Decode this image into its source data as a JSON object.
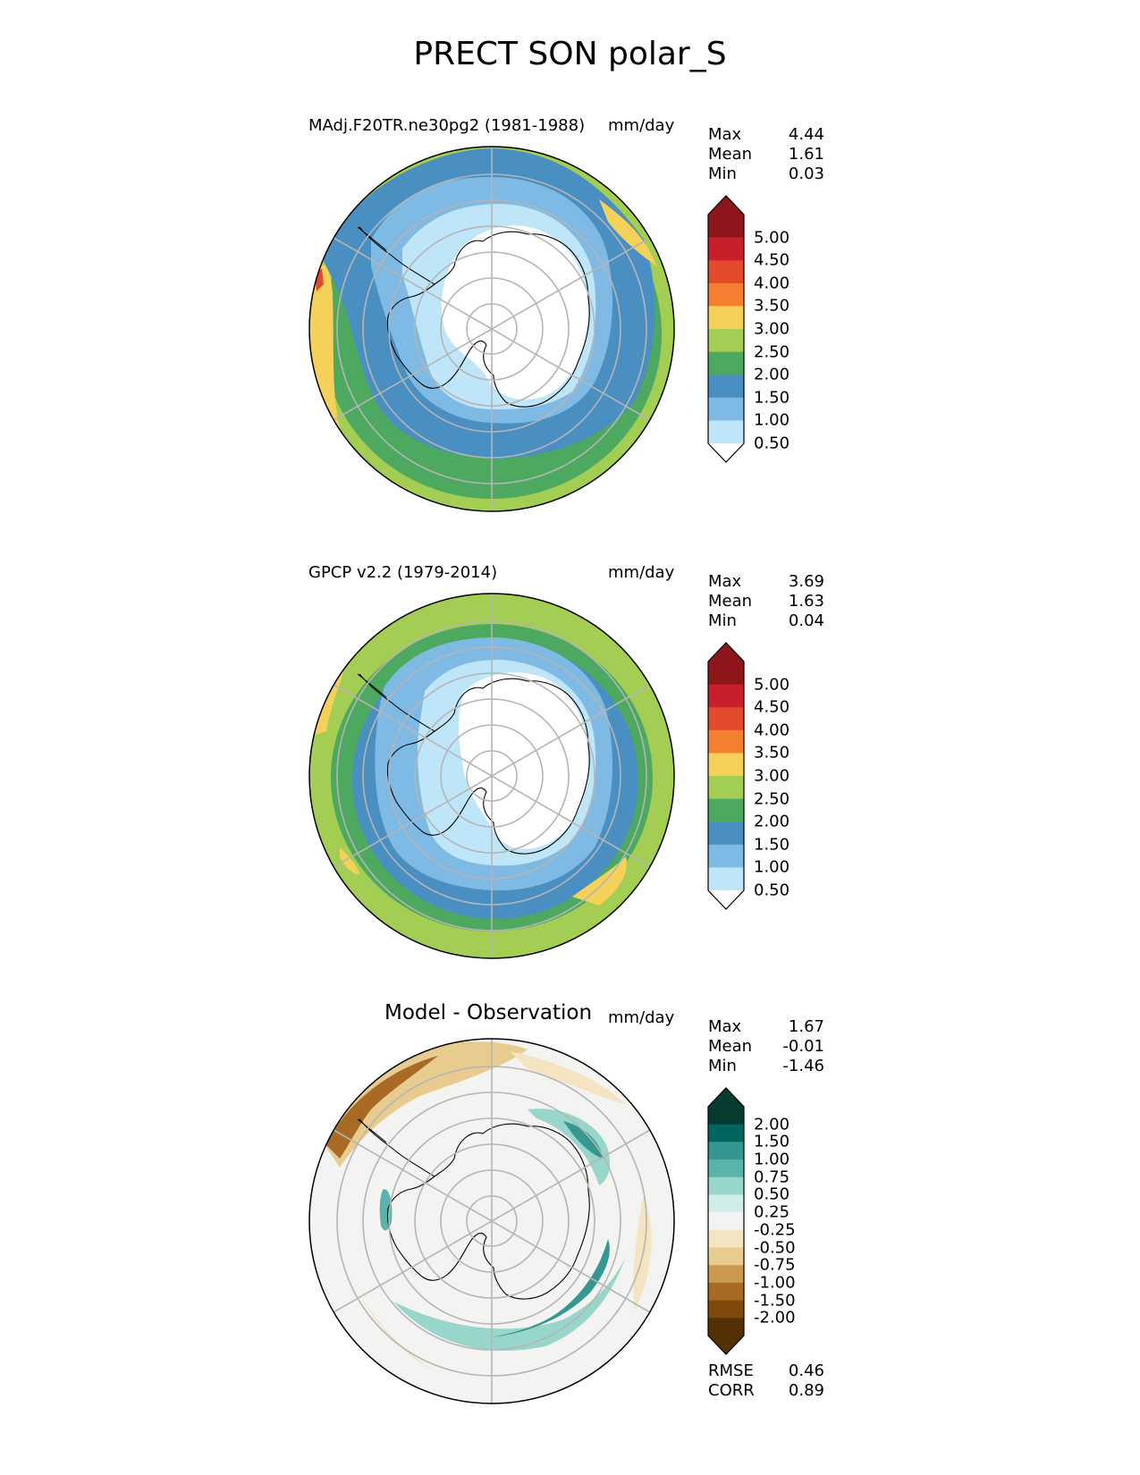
{
  "title": "PRECT SON polar_S",
  "panels": [
    {
      "left_title": "MAdj.F20TR.ne30pg2 (1981-1988)",
      "center_title": "",
      "units": "mm/day",
      "stats": [
        {
          "label": "Max",
          "value": "4.44"
        },
        {
          "label": "Mean",
          "value": "1.61"
        },
        {
          "label": "Min",
          "value": "0.03"
        }
      ],
      "colorbar": {
        "levels": [
          "5.00",
          "4.50",
          "4.00",
          "3.50",
          "3.00",
          "2.50",
          "2.00",
          "1.50",
          "1.00",
          "0.50"
        ],
        "colors": [
          "#8c1619",
          "#8c1619",
          "#c8202a",
          "#e24a2b",
          "#f47f30",
          "#f6d15a",
          "#a3cd53",
          "#4ca95f",
          "#4a8fc1",
          "#7fbae4",
          "#bfe5f8",
          "#ffffff"
        ]
      },
      "field": {
        "rings_from_pole": [
          {
            "value": 0.3,
            "color": "#ffffff"
          },
          {
            "value": 0.8,
            "color": "#bfe5f8"
          },
          {
            "value": 1.2,
            "color": "#7fbae4"
          },
          {
            "value": 1.7,
            "color": "#4a8fc1"
          },
          {
            "value": 2.2,
            "color": "#4ca95f"
          },
          {
            "value": 2.7,
            "color": "#a3cd53"
          }
        ],
        "regional_features": [
          {
            "region": "Bellingshausen–Drake sector",
            "value": 3.2,
            "color": "#f6d15a"
          },
          {
            "region": "Pacific sector near S. America",
            "value": 4.2,
            "color": "#e24a2b"
          }
        ]
      }
    },
    {
      "left_title": "GPCP v2.2 (1979-2014)",
      "center_title": "",
      "units": "mm/day",
      "stats": [
        {
          "label": "Max",
          "value": "3.69"
        },
        {
          "label": "Mean",
          "value": "1.63"
        },
        {
          "label": "Min",
          "value": "0.04"
        }
      ],
      "colorbar": {
        "levels": [
          "5.00",
          "4.50",
          "4.00",
          "3.50",
          "3.00",
          "2.50",
          "2.00",
          "1.50",
          "1.00",
          "0.50"
        ],
        "colors": [
          "#8c1619",
          "#8c1619",
          "#c8202a",
          "#e24a2b",
          "#f47f30",
          "#f6d15a",
          "#a3cd53",
          "#4ca95f",
          "#4a8fc1",
          "#7fbae4",
          "#bfe5f8",
          "#ffffff"
        ]
      },
      "field": {
        "rings_from_pole": [
          {
            "value": 0.3,
            "color": "#ffffff"
          },
          {
            "value": 0.8,
            "color": "#bfe5f8"
          },
          {
            "value": 1.2,
            "color": "#7fbae4"
          },
          {
            "value": 1.7,
            "color": "#4a8fc1"
          },
          {
            "value": 2.2,
            "color": "#4ca95f"
          },
          {
            "value": 2.7,
            "color": "#a3cd53"
          }
        ],
        "regional_features": [
          {
            "region": "South Pacific",
            "value": 3.2,
            "color": "#f6d15a"
          },
          {
            "region": "South Atlantic",
            "value": 3.2,
            "color": "#f6d15a"
          }
        ]
      }
    },
    {
      "left_title": "",
      "center_title": "Model - Observation",
      "units": "mm/day",
      "stats": [
        {
          "label": "Max",
          "value": "1.67"
        },
        {
          "label": "Mean",
          "value": "-0.01"
        },
        {
          "label": "Min",
          "value": "-1.46"
        }
      ],
      "colorbar": {
        "levels": [
          "2.00",
          "1.50",
          "1.00",
          "0.75",
          "0.50",
          "0.25",
          "-0.25",
          "-0.50",
          "-0.75",
          "-1.00",
          "-1.50",
          "-2.00"
        ],
        "colors": [
          "#053b31",
          "#053b31",
          "#01665e",
          "#35978f",
          "#5ab4ac",
          "#98d5cb",
          "#d2ece8",
          "#f3f3f2",
          "#f5e4c2",
          "#e8cc8f",
          "#c99a4f",
          "#a86a24",
          "#7e4a0c",
          "#543005",
          "#543005"
        ]
      },
      "field": {
        "rings_from_pole": [
          {
            "value": 0.0,
            "color": "#f3f3f2"
          }
        ],
        "regional_features": [
          {
            "region": "South Pacific off S. America",
            "value": -1.2,
            "color": "#a86a24"
          },
          {
            "region": "Indian Ocean sector",
            "value": 0.8,
            "color": "#35978f"
          },
          {
            "region": "Ross Sea sector",
            "value": 0.8,
            "color": "#35978f"
          },
          {
            "region": "Antarctic Peninsula",
            "value": 0.6,
            "color": "#5ab4ac"
          }
        ]
      }
    }
  ],
  "error_stats": [
    {
      "label": "RMSE",
      "value": "0.46"
    },
    {
      "label": "CORR",
      "value": "0.89"
    }
  ]
}
